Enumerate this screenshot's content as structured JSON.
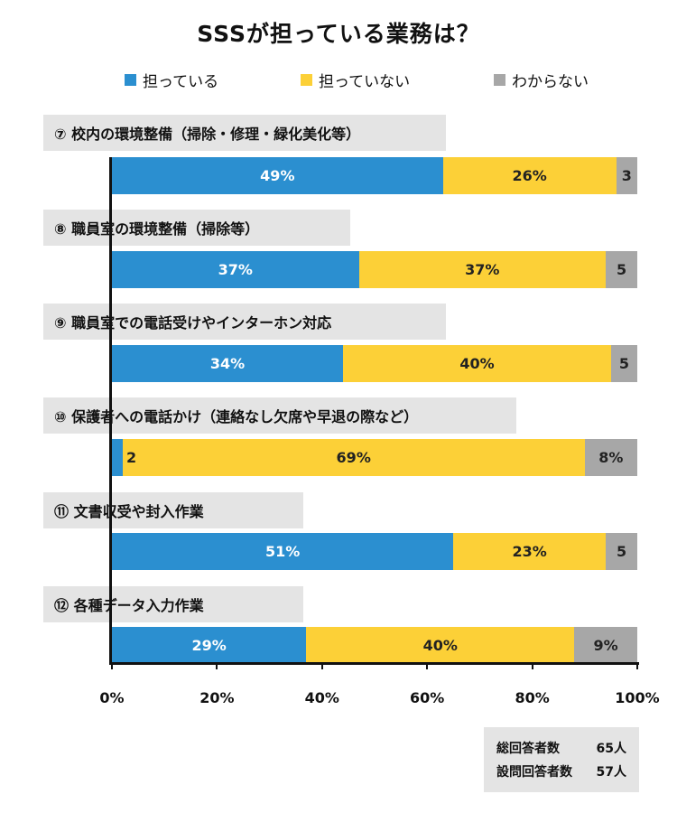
{
  "title": "SSSが担っている業務は？",
  "legend": [
    {
      "label": "担っている",
      "color": "#2b8fd0"
    },
    {
      "label": "担っていない",
      "color": "#fcd037"
    },
    {
      "label": "わからない",
      "color": "#a7a7a7"
    }
  ],
  "chart_data": {
    "type": "bar",
    "orientation": "horizontal",
    "stacked": true,
    "title": "SSSが担っている業務は？",
    "categories": [
      "⑦ 校内の環境整備（掃除・修理・緑化美化等）",
      "⑧ 職員室の環境整備（掃除等）",
      "⑨ 職員室での電話受けやインターホン対応",
      "⑩ 保護者への電話かけ（連絡なし欠席や早退の際など）",
      "⑪ 文書収受や封入作業",
      "⑫ 各種データ入力作業"
    ],
    "series": [
      {
        "name": "担っている",
        "values": [
          63,
          47,
          44,
          2,
          65,
          37
        ],
        "labels": [
          "49%",
          "37%",
          "34%",
          "2",
          "51%",
          "29%"
        ]
      },
      {
        "name": "担っていない",
        "values": [
          33,
          47,
          51,
          88,
          29,
          51
        ],
        "labels": [
          "26%",
          "37%",
          "40%",
          "69%",
          "23%",
          "40%"
        ]
      },
      {
        "name": "わからない",
        "values": [
          4,
          6,
          5,
          10,
          6,
          12
        ],
        "labels": [
          "3",
          "5",
          "5",
          "8%",
          "5",
          "9%"
        ]
      }
    ],
    "xlim": [
      0,
      100
    ],
    "x_ticks": [
      "0%",
      "20%",
      "40%",
      "60%",
      "80%",
      "100%"
    ]
  },
  "respondents": {
    "total_label": "総回答者数",
    "total_value": "65人",
    "answered_label": "設問回答者数",
    "answered_value": "57人"
  }
}
